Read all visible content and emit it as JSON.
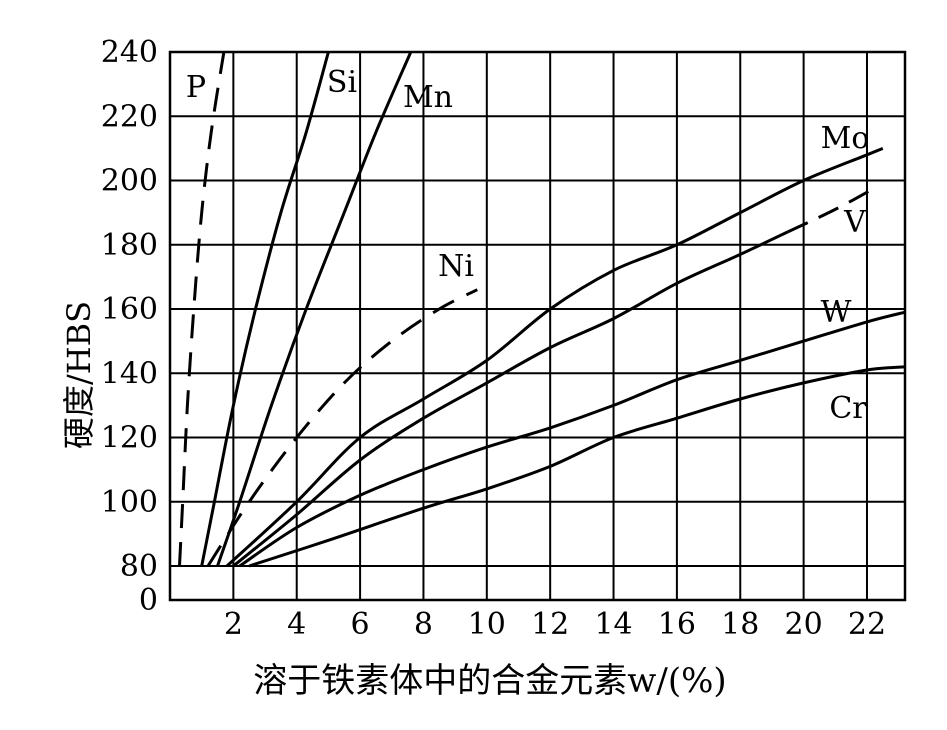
{
  "chart_data": {
    "type": "line",
    "xlabel": "溶于铁素体中的合金元素w/(%)",
    "ylabel": "硬度/HBS",
    "xlim": [
      0,
      23.2
    ],
    "ylim": [
      0,
      240
    ],
    "x_ticks": [
      2,
      4,
      6,
      8,
      10,
      12,
      14,
      16,
      18,
      20,
      22
    ],
    "y_ticks": [
      0,
      80,
      100,
      120,
      140,
      160,
      180,
      200,
      220,
      240
    ],
    "grid": true,
    "y_axis_note": "broken axis between 0 and 80",
    "series": [
      {
        "name": "P",
        "style": "dashed",
        "points": [
          [
            0.3,
            80
          ],
          [
            0.4,
            100
          ],
          [
            0.55,
            130
          ],
          [
            0.75,
            160
          ],
          [
            1.0,
            190
          ],
          [
            1.3,
            215
          ],
          [
            1.7,
            240
          ]
        ]
      },
      {
        "name": "Si",
        "style": "solid",
        "points": [
          [
            1.0,
            80
          ],
          [
            1.4,
            100
          ],
          [
            2.0,
            130
          ],
          [
            2.7,
            160
          ],
          [
            3.5,
            190
          ],
          [
            4.3,
            215
          ],
          [
            5.0,
            240
          ]
        ]
      },
      {
        "name": "Mn",
        "style": "solid",
        "points": [
          [
            1.5,
            80
          ],
          [
            2.2,
            100
          ],
          [
            3.2,
            130
          ],
          [
            4.3,
            160
          ],
          [
            5.5,
            190
          ],
          [
            6.5,
            215
          ],
          [
            7.6,
            240
          ]
        ]
      },
      {
        "name": "Ni",
        "style": "dashed",
        "points": [
          [
            1.2,
            80
          ],
          [
            2.5,
            100
          ],
          [
            4.0,
            120
          ],
          [
            5.5,
            137
          ],
          [
            7.0,
            150
          ],
          [
            8.5,
            160
          ],
          [
            9.7,
            166
          ]
        ]
      },
      {
        "name": "Mo",
        "style": "solid",
        "points": [
          [
            1.8,
            80
          ],
          [
            4,
            100
          ],
          [
            6,
            120
          ],
          [
            8,
            132
          ],
          [
            10,
            144
          ],
          [
            12,
            160
          ],
          [
            14,
            172
          ],
          [
            16,
            180
          ],
          [
            18,
            190
          ],
          [
            20,
            200
          ],
          [
            22,
            208
          ],
          [
            22.5,
            210
          ]
        ]
      },
      {
        "name": "V",
        "style": "solid-then-dashed",
        "points": [
          [
            2.0,
            80
          ],
          [
            4,
            96
          ],
          [
            6,
            113
          ],
          [
            8,
            126
          ],
          [
            10,
            137
          ],
          [
            12,
            148
          ],
          [
            14,
            157
          ],
          [
            16,
            168
          ],
          [
            18,
            177
          ],
          [
            19.5,
            184
          ],
          [
            21,
            191
          ],
          [
            22.3,
            198
          ]
        ]
      },
      {
        "name": "W",
        "style": "solid",
        "points": [
          [
            2.2,
            80
          ],
          [
            4,
            92
          ],
          [
            6,
            102
          ],
          [
            8,
            110
          ],
          [
            10,
            117
          ],
          [
            12,
            123
          ],
          [
            14,
            130
          ],
          [
            16,
            138
          ],
          [
            18,
            144
          ],
          [
            20,
            150
          ],
          [
            22,
            156
          ],
          [
            23.2,
            159
          ]
        ]
      },
      {
        "name": "Cr",
        "style": "solid",
        "points": [
          [
            2.5,
            80
          ],
          [
            5,
            88
          ],
          [
            8,
            98
          ],
          [
            10,
            104
          ],
          [
            12,
            111
          ],
          [
            14,
            120
          ],
          [
            16,
            126
          ],
          [
            18,
            132
          ],
          [
            20,
            137
          ],
          [
            22,
            141
          ],
          [
            23.2,
            142
          ]
        ]
      }
    ]
  }
}
